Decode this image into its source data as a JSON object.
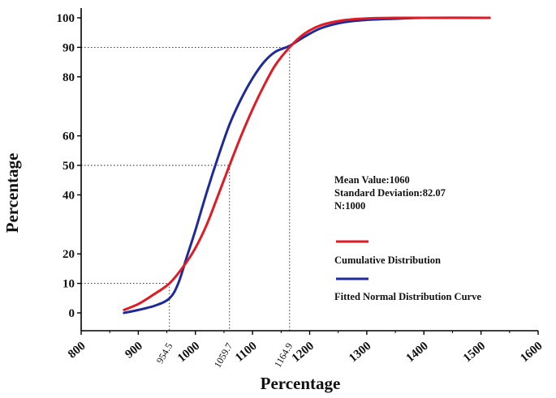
{
  "chart_data": {
    "type": "line",
    "xlabel": "Percentage",
    "ylabel": "Percentage",
    "xlim": [
      800,
      1600
    ],
    "ylim": [
      -5,
      102
    ],
    "x_ticks": [
      800,
      900,
      1000,
      1100,
      1200,
      1300,
      1400,
      1500,
      1600
    ],
    "y_ticks": [
      0,
      10,
      20,
      40,
      50,
      60,
      80,
      90,
      100
    ],
    "stats": {
      "mean_label": "Mean Value:1060",
      "std_label": "Standard Deviation:82.07",
      "n_label": "N:1000"
    },
    "reference_markers": [
      {
        "y": 10,
        "x": 954.5,
        "label": "954.5"
      },
      {
        "y": 50,
        "x": 1059.7,
        "label": "1059.7"
      },
      {
        "y": 90,
        "x": 1164.9,
        "label": "1164.9"
      }
    ],
    "series": [
      {
        "name": "Cumulative Distribution",
        "color": "#e01b24",
        "x": [
          875,
          900,
          925,
          954.5,
          980,
          1000,
          1020,
          1040,
          1059.7,
          1080,
          1100,
          1120,
          1140,
          1164.9,
          1190,
          1220,
          1260,
          1300,
          1350,
          1400,
          1450,
          1515
        ],
        "y": [
          1,
          3,
          6,
          10,
          16,
          22,
          30,
          40,
          50,
          60,
          69,
          77,
          84,
          90,
          94.5,
          97.5,
          99.2,
          99.8,
          100,
          100,
          100,
          100
        ]
      },
      {
        "name": "Fitted Normal Distribution Curve",
        "color": "#1f2a9a",
        "x": [
          875,
          900,
          930,
          955,
          970,
          985,
          1000,
          1020,
          1040,
          1060,
          1080,
          1100,
          1120,
          1140,
          1164.9,
          1190,
          1220,
          1260,
          1300,
          1350,
          1400,
          1515
        ],
        "y": [
          0,
          1,
          2.5,
          5,
          10,
          19,
          28,
          41,
          53,
          64,
          72.5,
          79.5,
          85,
          88.5,
          90.5,
          93.5,
          96.5,
          98.5,
          99.3,
          99.7,
          100,
          100
        ]
      }
    ]
  }
}
